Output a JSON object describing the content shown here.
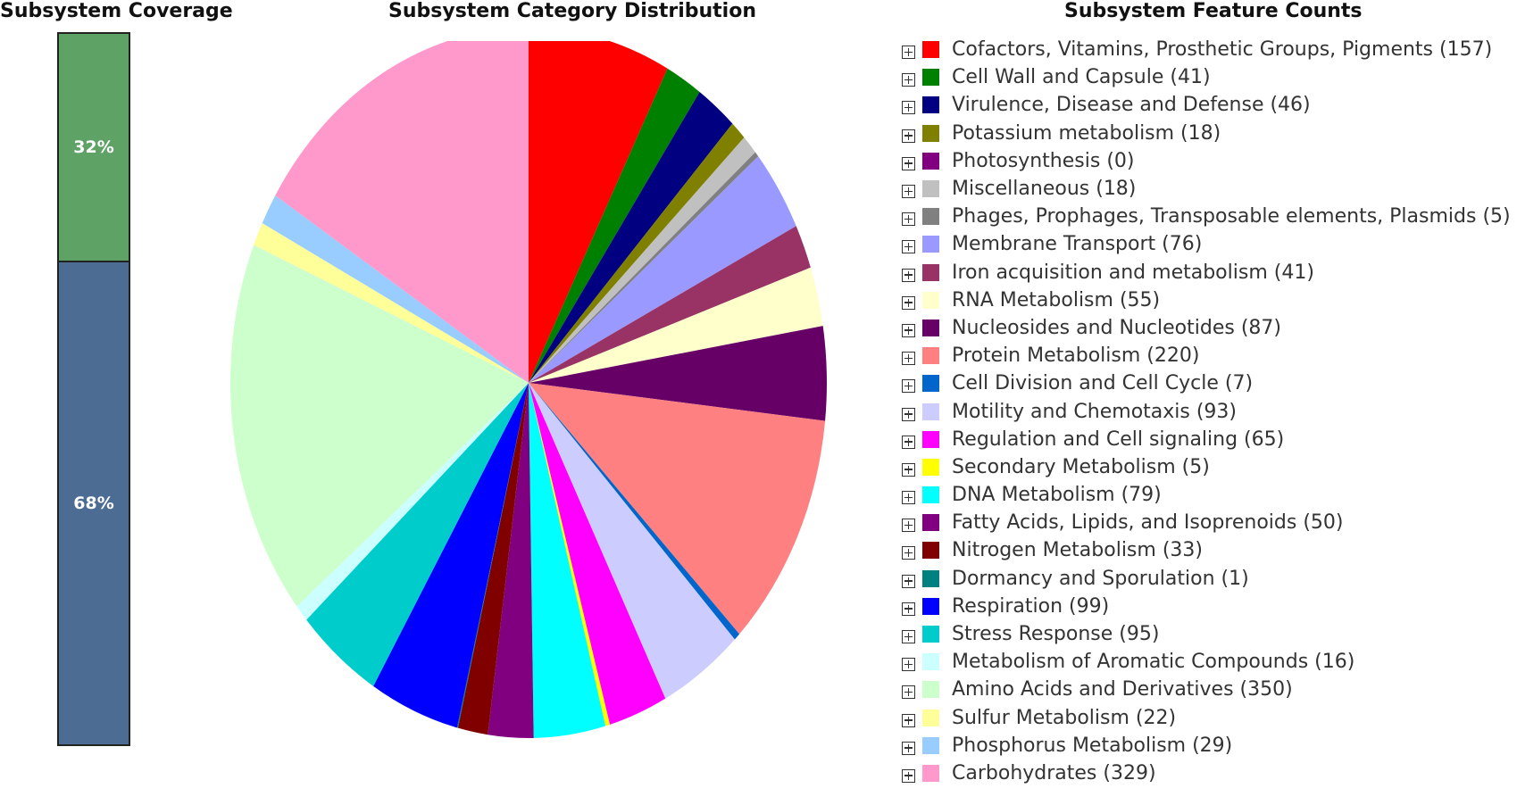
{
  "titles": {
    "coverage": "Subsystem Coverage",
    "distribution": "Subsystem Category Distribution",
    "counts": "Subsystem Feature Counts"
  },
  "coverage": {
    "covered_label": "32%",
    "uncovered_label": "68%",
    "covered_fraction": 0.32,
    "uncovered_fraction": 0.68,
    "covered_color": "#5ea266",
    "uncovered_color": "#4c6c94"
  },
  "chart_data": {
    "type": "pie",
    "title": "Subsystem Category Distribution",
    "legend_position": "right",
    "slices": [
      {
        "label": "Cofactors, Vitamins, Prosthetic Groups, Pigments",
        "count": 157,
        "color": "#ff0000"
      },
      {
        "label": "Cell Wall and Capsule",
        "count": 41,
        "color": "#008000"
      },
      {
        "label": "Virulence, Disease and Defense",
        "count": 46,
        "color": "#000080"
      },
      {
        "label": "Potassium metabolism",
        "count": 18,
        "color": "#808000"
      },
      {
        "label": "Photosynthesis",
        "count": 0,
        "color": "#800080"
      },
      {
        "label": "Miscellaneous",
        "count": 18,
        "color": "#c0c0c0"
      },
      {
        "label": "Phages, Prophages, Transposable elements, Plasmids",
        "count": 5,
        "color": "#808080"
      },
      {
        "label": "Membrane Transport",
        "count": 76,
        "color": "#9999ff"
      },
      {
        "label": "Iron acquisition and metabolism",
        "count": 41,
        "color": "#993366"
      },
      {
        "label": "RNA Metabolism",
        "count": 55,
        "color": "#ffffcc"
      },
      {
        "label": "Nucleosides and Nucleotides",
        "count": 87,
        "color": "#660066"
      },
      {
        "label": "Protein Metabolism",
        "count": 220,
        "color": "#ff8080"
      },
      {
        "label": "Cell Division and Cell Cycle",
        "count": 7,
        "color": "#0066cc"
      },
      {
        "label": "Motility and Chemotaxis",
        "count": 93,
        "color": "#ccccff"
      },
      {
        "label": "Regulation and Cell signaling",
        "count": 65,
        "color": "#ff00ff"
      },
      {
        "label": "Secondary Metabolism",
        "count": 5,
        "color": "#ffff00"
      },
      {
        "label": "DNA Metabolism",
        "count": 79,
        "color": "#00ffff"
      },
      {
        "label": "Fatty Acids, Lipids, and Isoprenoids",
        "count": 50,
        "color": "#800080"
      },
      {
        "label": "Nitrogen Metabolism",
        "count": 33,
        "color": "#800000"
      },
      {
        "label": "Dormancy and Sporulation",
        "count": 1,
        "color": "#008080"
      },
      {
        "label": "Respiration",
        "count": 99,
        "color": "#0000ff"
      },
      {
        "label": "Stress Response",
        "count": 95,
        "color": "#00cccc"
      },
      {
        "label": "Metabolism of Aromatic Compounds",
        "count": 16,
        "color": "#ccffff"
      },
      {
        "label": "Amino Acids and Derivatives",
        "count": 350,
        "color": "#ccffcc"
      },
      {
        "label": "Sulfur Metabolism",
        "count": 22,
        "color": "#ffff99"
      },
      {
        "label": "Phosphorus Metabolism",
        "count": 29,
        "color": "#99ccff"
      },
      {
        "label": "Carbohydrates",
        "count": 329,
        "color": "#ff99cc"
      }
    ]
  },
  "legend_entries": [
    "Cofactors, Vitamins, Prosthetic Groups, Pigments (157)",
    "Cell Wall and Capsule (41)",
    "Virulence, Disease and Defense (46)",
    "Potassium metabolism (18)",
    "Photosynthesis (0)",
    "Miscellaneous (18)",
    "Phages, Prophages, Transposable elements, Plasmids (5)",
    "Membrane Transport (76)",
    "Iron acquisition and metabolism (41)",
    "RNA Metabolism (55)",
    "Nucleosides and Nucleotides (87)",
    "Protein Metabolism (220)",
    "Cell Division and Cell Cycle (7)",
    "Motility and Chemotaxis (93)",
    "Regulation and Cell signaling (65)",
    "Secondary Metabolism (5)",
    "DNA Metabolism (79)",
    "Fatty Acids, Lipids, and Isoprenoids (50)",
    "Nitrogen Metabolism (33)",
    "Dormancy and Sporulation (1)",
    "Respiration (99)",
    "Stress Response (95)",
    "Metabolism of Aromatic Compounds (16)",
    "Amino Acids and Derivatives (350)",
    "Sulfur Metabolism (22)",
    "Phosphorus Metabolism (29)",
    "Carbohydrates (329)"
  ]
}
